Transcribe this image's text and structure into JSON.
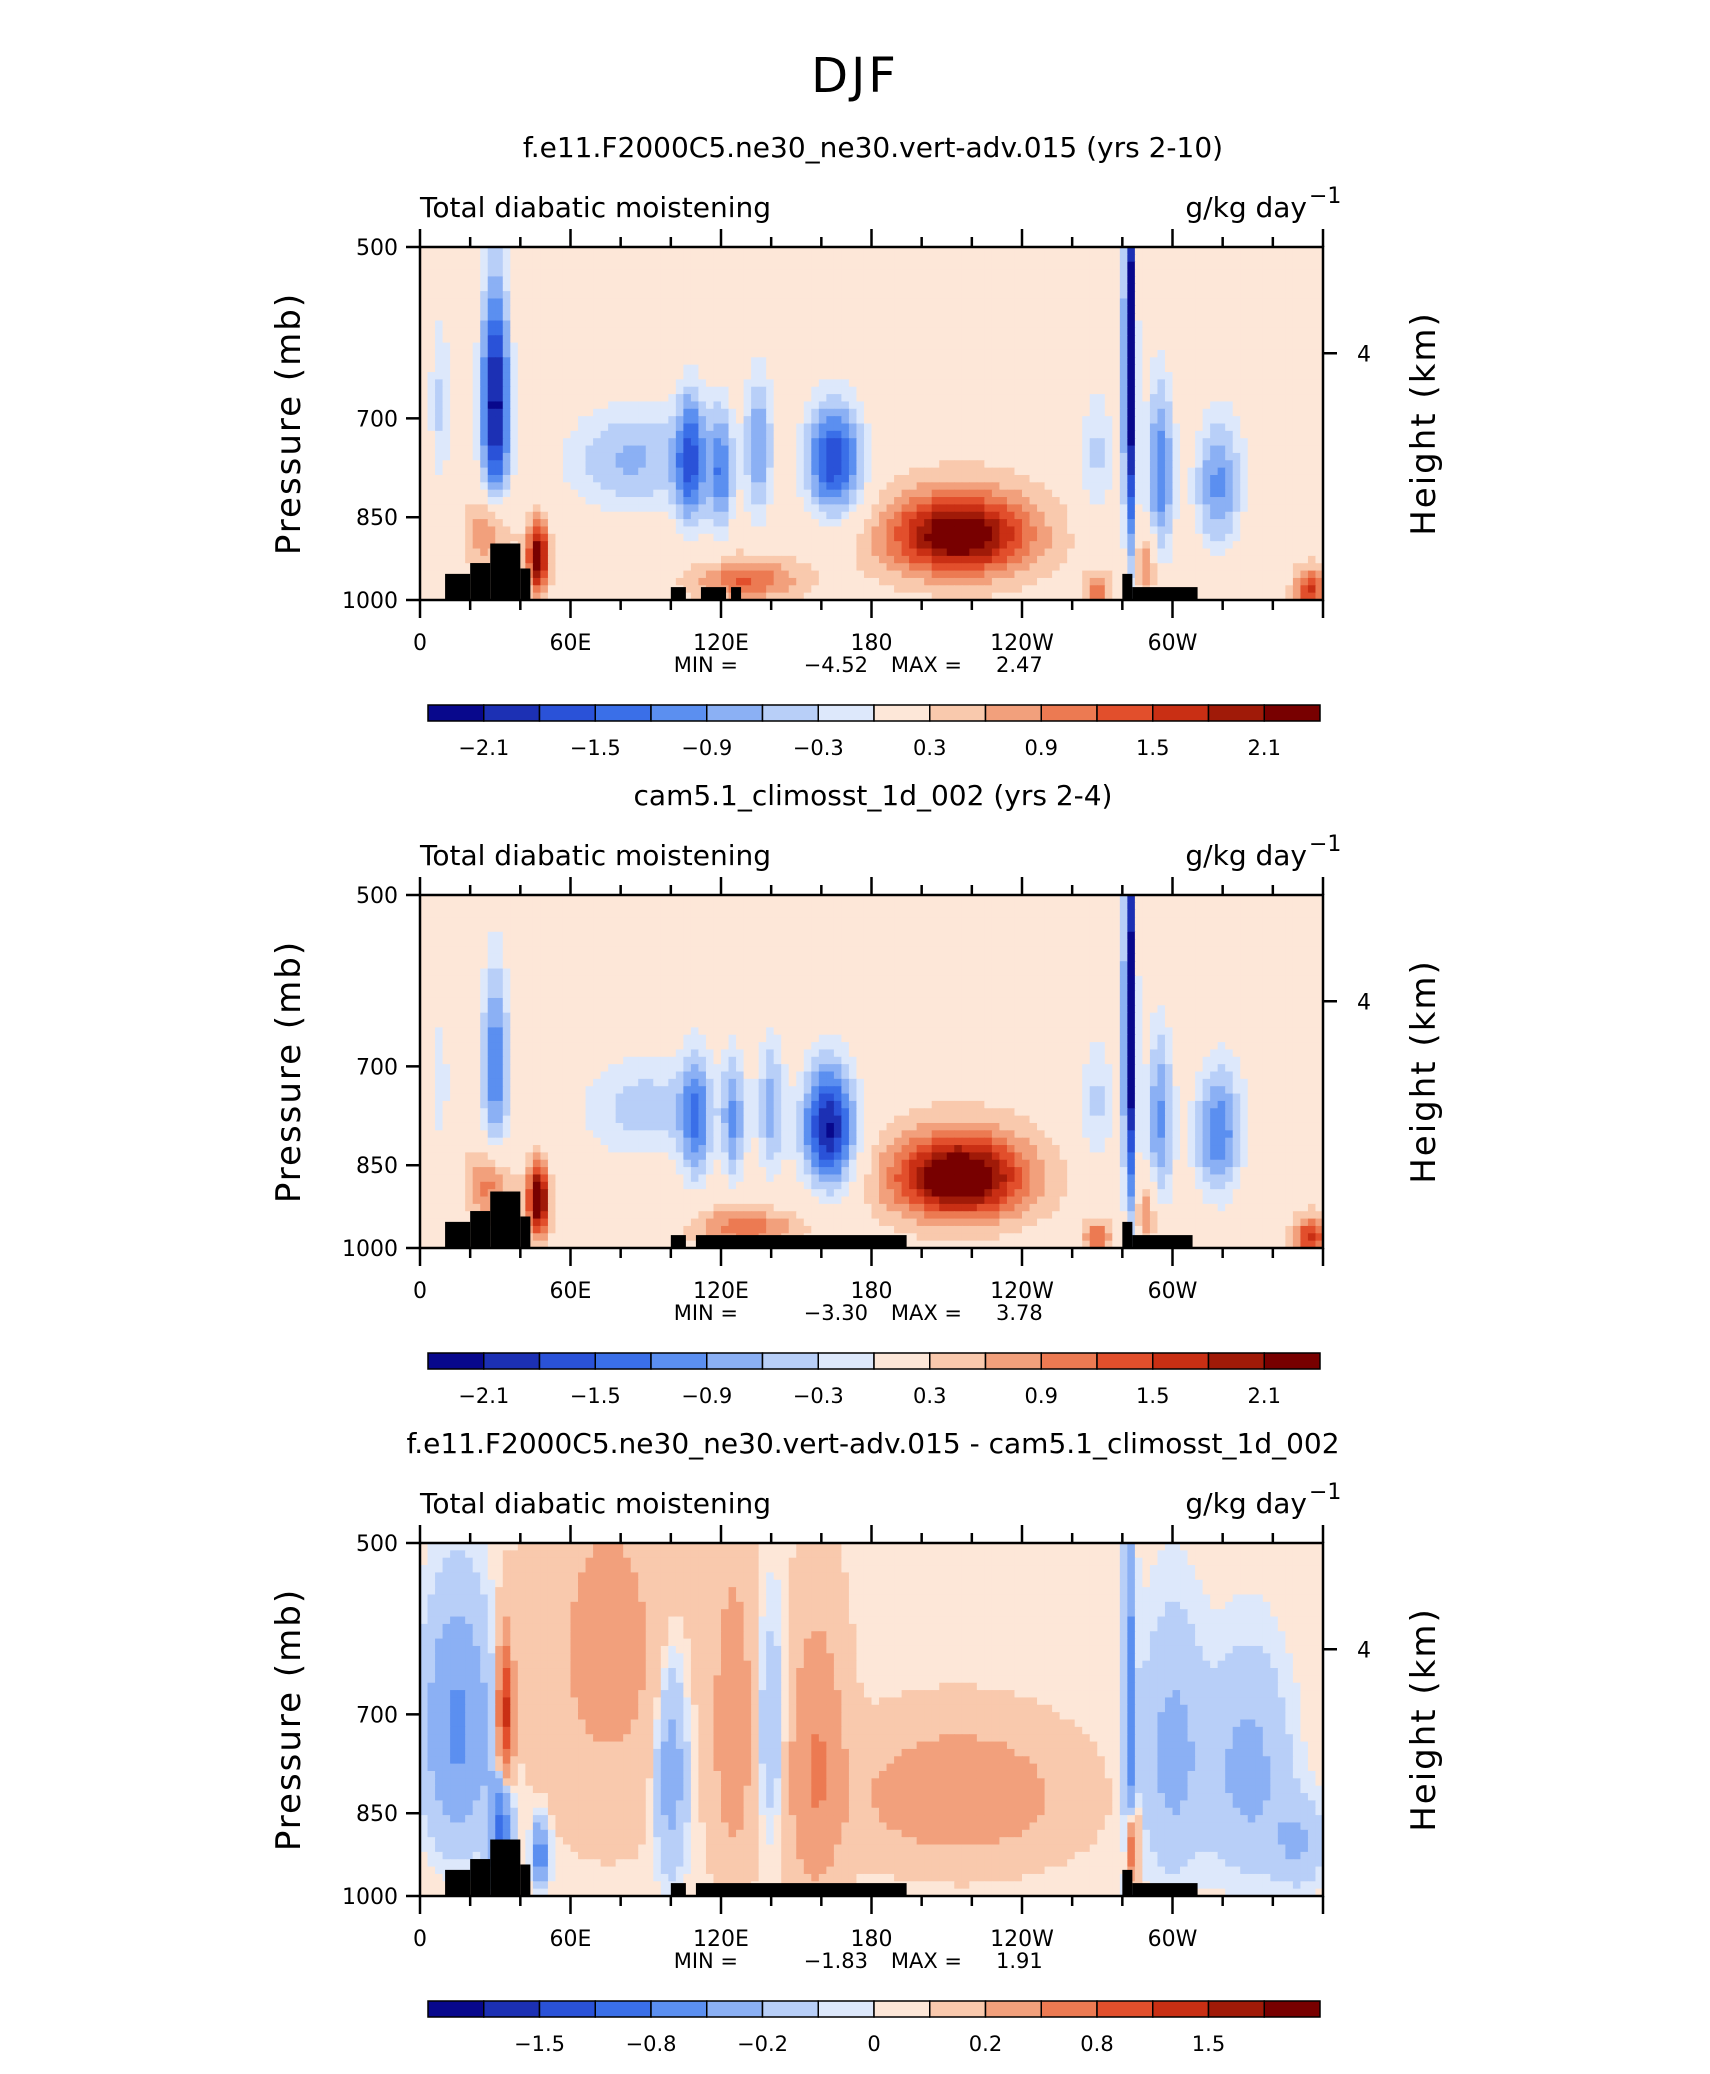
{
  "figure_title": "DJF",
  "chart_data": [
    {
      "type": "heatmap",
      "title": "f.e11.F2000C5.ne30_ne30.vert-adv.015 (yrs 2-10)",
      "left_label": "Total diabatic moistening",
      "units_base": "g/kg day",
      "units_exp": "−1",
      "ylabel": "Pressure (mb)",
      "ylabel_right": "Height (km)",
      "yticks": [
        "500",
        "700",
        "850",
        "1000"
      ],
      "yticks_right": [
        "4"
      ],
      "xticks": [
        "0",
        "60E",
        "120E",
        "180",
        "120W",
        "60W"
      ],
      "min_label": "MIN =",
      "min": "−4.52",
      "max_label": "MAX =",
      "max": "2.47",
      "colorbar_ticks": [
        "−2.1",
        "−1.5",
        "−0.9",
        "−0.3",
        "0.3",
        "0.9",
        "1.5",
        "2.1"
      ],
      "features": [
        {
          "lon": 30,
          "p": 680,
          "v": -2.7,
          "wl": 6,
          "wp": 160
        },
        {
          "lon": 28,
          "p": 870,
          "v": 1.2,
          "wl": 8,
          "wp": 60
        },
        {
          "lon": 47,
          "p": 920,
          "v": 2.4,
          "wl": 4,
          "wp": 60
        },
        {
          "lon": 8,
          "p": 680,
          "v": -0.8,
          "wl": 5,
          "wp": 140
        },
        {
          "lon": 85,
          "p": 760,
          "v": -1.1,
          "wl": 30,
          "wp": 90
        },
        {
          "lon": 108,
          "p": 760,
          "v": -1.6,
          "wl": 6,
          "wp": 110
        },
        {
          "lon": 120,
          "p": 780,
          "v": -1.4,
          "wl": 5,
          "wp": 110
        },
        {
          "lon": 135,
          "p": 740,
          "v": -1.3,
          "wl": 6,
          "wp": 120
        },
        {
          "lon": 165,
          "p": 760,
          "v": -2.2,
          "wl": 12,
          "wp": 90
        },
        {
          "lon": 130,
          "p": 960,
          "v": 1.1,
          "wl": 20,
          "wp": 40
        },
        {
          "lon": 215,
          "p": 880,
          "v": 2.4,
          "wl": 28,
          "wp": 70
        },
        {
          "lon": 283,
          "p": 620,
          "v": -3.0,
          "wl": 2.5,
          "wp": 300
        },
        {
          "lon": 295,
          "p": 780,
          "v": -1.6,
          "wl": 6,
          "wp": 150
        },
        {
          "lon": 318,
          "p": 800,
          "v": -1.4,
          "wl": 10,
          "wp": 110
        },
        {
          "lon": 270,
          "p": 750,
          "v": -0.8,
          "wl": 8,
          "wp": 110
        },
        {
          "lon": 290,
          "p": 930,
          "v": 1.0,
          "wl": 4,
          "wp": 60
        },
        {
          "lon": 355,
          "p": 980,
          "v": 1.4,
          "wl": 6,
          "wp": 40
        },
        {
          "lon": 345,
          "p": 620,
          "v": -0.4,
          "wl": 20,
          "wp": 200
        },
        {
          "lon": 270,
          "p": 980,
          "v": 1.0,
          "wl": 5,
          "wp": 30
        }
      ],
      "topography": [
        {
          "lon0": 10,
          "lon1": 20,
          "p": 950
        },
        {
          "lon0": 20,
          "lon1": 28,
          "p": 930
        },
        {
          "lon0": 28,
          "lon1": 40,
          "p": 895
        },
        {
          "lon0": 40,
          "lon1": 44,
          "p": 940
        },
        {
          "lon0": 100,
          "lon1": 106,
          "p": 975
        },
        {
          "lon0": 112,
          "lon1": 122,
          "p": 975
        },
        {
          "lon0": 124,
          "lon1": 128,
          "p": 975
        },
        {
          "lon0": 280,
          "lon1": 284,
          "p": 950
        },
        {
          "lon0": 284,
          "lon1": 310,
          "p": 975
        }
      ]
    },
    {
      "type": "heatmap",
      "title": "cam5.1_climosst_1d_002 (yrs 2-4)",
      "left_label": "Total diabatic moistening",
      "units_base": "g/kg day",
      "units_exp": "−1",
      "ylabel": "Pressure (mb)",
      "ylabel_right": "Height (km)",
      "yticks": [
        "500",
        "700",
        "850",
        "1000"
      ],
      "yticks_right": [
        "4"
      ],
      "xticks": [
        "0",
        "60E",
        "120E",
        "180",
        "120W",
        "60W"
      ],
      "min_label": "MIN =",
      "min": "−3.30",
      "max_label": "MAX =",
      "max": "3.78",
      "colorbar_ticks": [
        "−2.1",
        "−1.5",
        "−0.9",
        "−0.3",
        "0.3",
        "0.9",
        "1.5",
        "2.1"
      ],
      "features": [
        {
          "lon": 30,
          "p": 700,
          "v": -1.6,
          "wl": 6,
          "wp": 150
        },
        {
          "lon": 28,
          "p": 880,
          "v": 1.1,
          "wl": 8,
          "wp": 60
        },
        {
          "lon": 47,
          "p": 910,
          "v": 2.6,
          "wl": 4,
          "wp": 60
        },
        {
          "lon": 8,
          "p": 720,
          "v": -0.6,
          "wl": 5,
          "wp": 140
        },
        {
          "lon": 90,
          "p": 760,
          "v": -0.9,
          "wl": 30,
          "wp": 90
        },
        {
          "lon": 110,
          "p": 780,
          "v": -1.3,
          "wl": 6,
          "wp": 110
        },
        {
          "lon": 125,
          "p": 780,
          "v": -1.2,
          "wl": 5,
          "wp": 110
        },
        {
          "lon": 140,
          "p": 760,
          "v": -1.1,
          "wl": 6,
          "wp": 120
        },
        {
          "lon": 163,
          "p": 790,
          "v": -2.6,
          "wl": 11,
          "wp": 100
        },
        {
          "lon": 130,
          "p": 960,
          "v": 1.0,
          "wl": 20,
          "wp": 40
        },
        {
          "lon": 215,
          "p": 870,
          "v": 2.6,
          "wl": 26,
          "wp": 70
        },
        {
          "lon": 283,
          "p": 640,
          "v": -3.0,
          "wl": 2.5,
          "wp": 300
        },
        {
          "lon": 295,
          "p": 780,
          "v": -1.4,
          "wl": 6,
          "wp": 150
        },
        {
          "lon": 318,
          "p": 800,
          "v": -1.6,
          "wl": 10,
          "wp": 110
        },
        {
          "lon": 270,
          "p": 750,
          "v": -0.8,
          "wl": 8,
          "wp": 110
        },
        {
          "lon": 290,
          "p": 930,
          "v": 0.9,
          "wl": 4,
          "wp": 60
        },
        {
          "lon": 355,
          "p": 980,
          "v": 1.5,
          "wl": 6,
          "wp": 40
        },
        {
          "lon": 345,
          "p": 640,
          "v": -0.3,
          "wl": 20,
          "wp": 200
        },
        {
          "lon": 270,
          "p": 980,
          "v": 1.1,
          "wl": 5,
          "wp": 30
        }
      ],
      "topography": [
        {
          "lon0": 10,
          "lon1": 20,
          "p": 950
        },
        {
          "lon0": 20,
          "lon1": 28,
          "p": 930
        },
        {
          "lon0": 28,
          "lon1": 40,
          "p": 895
        },
        {
          "lon0": 40,
          "lon1": 44,
          "p": 940
        },
        {
          "lon0": 100,
          "lon1": 106,
          "p": 975
        },
        {
          "lon0": 110,
          "lon1": 194,
          "p": 975
        },
        {
          "lon0": 280,
          "lon1": 284,
          "p": 950
        },
        {
          "lon0": 284,
          "lon1": 308,
          "p": 975
        }
      ]
    },
    {
      "type": "heatmap",
      "title": "f.e11.F2000C5.ne30_ne30.vert-adv.015 - cam5.1_climosst_1d_002",
      "left_label": "Total diabatic moistening",
      "units_base": "g/kg day",
      "units_exp": "−1",
      "ylabel": "Pressure (mb)",
      "ylabel_right": "Height (km)",
      "yticks": [
        "500",
        "700",
        "850",
        "1000"
      ],
      "yticks_right": [
        "4"
      ],
      "xticks": [
        "0",
        "60E",
        "120E",
        "180",
        "120W",
        "60W"
      ],
      "min_label": "MIN =",
      "min": "−1.83",
      "max_label": "MAX =",
      "max": "1.91",
      "colorbar_ticks": [
        "−1.5",
        "−0.8",
        "−0.2",
        "0",
        "0.2",
        "0.8",
        "1.5"
      ],
      "features": [
        {
          "lon": 15,
          "p": 720,
          "v": -0.6,
          "wl": 12,
          "wp": 150
        },
        {
          "lon": 34,
          "p": 700,
          "v": 1.2,
          "wl": 3,
          "wp": 90
        },
        {
          "lon": 32,
          "p": 880,
          "v": -1.0,
          "wl": 4,
          "wp": 80
        },
        {
          "lon": 48,
          "p": 920,
          "v": -0.8,
          "wl": 3,
          "wp": 50
        },
        {
          "lon": 75,
          "p": 620,
          "v": 0.25,
          "wl": 25,
          "wp": 200
        },
        {
          "lon": 100,
          "p": 780,
          "v": -0.4,
          "wl": 6,
          "wp": 150
        },
        {
          "lon": 125,
          "p": 720,
          "v": 0.35,
          "wl": 8,
          "wp": 200
        },
        {
          "lon": 158,
          "p": 780,
          "v": 0.5,
          "wl": 10,
          "wp": 180
        },
        {
          "lon": 140,
          "p": 720,
          "v": -0.2,
          "wl": 6,
          "wp": 150
        },
        {
          "lon": 215,
          "p": 820,
          "v": 0.45,
          "wl": 35,
          "wp": 90
        },
        {
          "lon": 283,
          "p": 700,
          "v": -0.7,
          "wl": 2,
          "wp": 250
        },
        {
          "lon": 284,
          "p": 910,
          "v": 1.0,
          "wl": 2,
          "wp": 60
        },
        {
          "lon": 300,
          "p": 760,
          "v": -0.3,
          "wl": 12,
          "wp": 170
        },
        {
          "lon": 330,
          "p": 780,
          "v": -0.3,
          "wl": 15,
          "wp": 150
        },
        {
          "lon": 350,
          "p": 900,
          "v": -0.25,
          "wl": 10,
          "wp": 70
        }
      ],
      "topography": [
        {
          "lon0": 10,
          "lon1": 20,
          "p": 950
        },
        {
          "lon0": 20,
          "lon1": 28,
          "p": 930
        },
        {
          "lon0": 28,
          "lon1": 40,
          "p": 895
        },
        {
          "lon0": 40,
          "lon1": 44,
          "p": 940
        },
        {
          "lon0": 100,
          "lon1": 106,
          "p": 975
        },
        {
          "lon0": 110,
          "lon1": 194,
          "p": 975
        },
        {
          "lon0": 280,
          "lon1": 284,
          "p": 950
        },
        {
          "lon0": 284,
          "lon1": 310,
          "p": 975
        }
      ]
    }
  ],
  "colors": {
    "palette": [
      "#08088c",
      "#1c30b4",
      "#2a52d8",
      "#3a6fe8",
      "#5b8ff0",
      "#8bb0f4",
      "#b8cff8",
      "#dde8fb",
      "#fde7d8",
      "#f9c9ad",
      "#f2a07c",
      "#ec7a52",
      "#e24f2c",
      "#c92f14",
      "#a01a08",
      "#780000"
    ]
  }
}
